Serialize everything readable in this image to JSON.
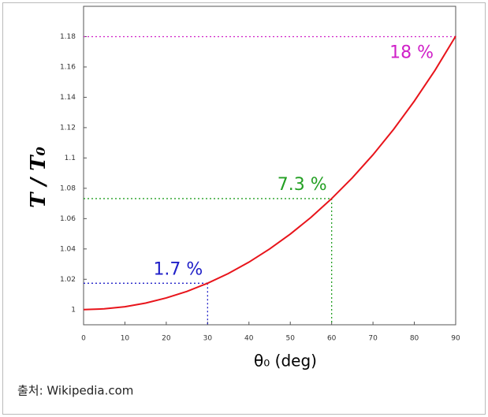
{
  "chart_data": {
    "type": "line",
    "x": [
      0,
      5,
      10,
      15,
      20,
      25,
      30,
      35,
      40,
      45,
      50,
      55,
      60,
      65,
      70,
      75,
      80,
      85,
      90
    ],
    "values": [
      1.0,
      1.0005,
      1.0019,
      1.0043,
      1.0077,
      1.012,
      1.0174,
      1.0238,
      1.0313,
      1.04,
      1.0498,
      1.0608,
      1.0732,
      1.0869,
      1.1021,
      1.1189,
      1.1375,
      1.1578,
      1.1803
    ],
    "color": "#e8141b",
    "xlim": [
      0,
      90
    ],
    "xticks": [
      0,
      10,
      20,
      30,
      40,
      50,
      60,
      70,
      80,
      90
    ],
    "ylim": [
      0.99,
      1.2
    ],
    "yticks": [
      1,
      1.02,
      1.04,
      1.06,
      1.08,
      1.1,
      1.12,
      1.14,
      1.16,
      1.18
    ],
    "x_label": "θ₀ (deg)",
    "y_label": "T / T₀",
    "annotations": [
      {
        "text": "1.7 %",
        "x": 30,
        "y": 1.0174,
        "color": "#2020c8"
      },
      {
        "text": "7.3 %",
        "x": 60,
        "y": 1.0732,
        "color": "#24a024"
      },
      {
        "text": "18 %",
        "x": 90,
        "y": 1.18,
        "color": "#d020c8"
      }
    ],
    "source": "출처: Wikipedia.com"
  }
}
